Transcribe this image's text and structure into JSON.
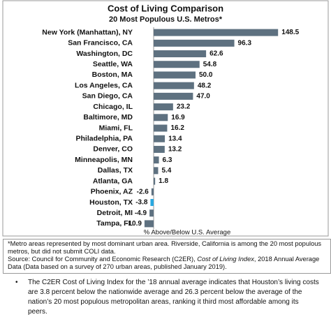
{
  "chart_data": {
    "type": "barh",
    "title": "Cost of Living Comparison",
    "subtitle": "20 Most Populous U.S. Metros*",
    "x_label": "% Above/Below U.S. Average",
    "categories": [
      "New York (Manhattan), NY",
      "San Francisco, CA",
      "Washington, DC",
      "Seattle, WA",
      "Boston, MA",
      "Los Angeles, CA",
      "San Diego, CA",
      "Chicago, IL",
      "Baltimore, MD",
      "Miami, FL",
      "Philadelphia, PA",
      "Denver, CO",
      "Minneapolis, MN",
      "Dallas, TX",
      "Atlanta, GA",
      "Phoenix, AZ",
      "Houston, TX",
      "Detroit, MI",
      "Tampa, FL"
    ],
    "values": [
      148.5,
      96.3,
      62.6,
      54.8,
      50.0,
      48.2,
      47.0,
      23.2,
      16.9,
      16.2,
      13.4,
      13.2,
      6.3,
      5.4,
      1.8,
      -2.6,
      -3.8,
      -4.9,
      -10.9
    ],
    "value_labels": [
      "148.5",
      "96.3",
      "62.6",
      "54.8",
      "50.0",
      "48.2",
      "47.0",
      "23.2",
      "16.9",
      "16.2",
      "13.4",
      "13.2",
      "6.3",
      "5.4",
      "1.8",
      "-2.6",
      "-3.8",
      "-4.9",
      "-10.9"
    ],
    "colors": [
      "#5e7180",
      "#5e7180",
      "#5e7180",
      "#5e7180",
      "#5e7180",
      "#5e7180",
      "#5e7180",
      "#5e7180",
      "#5e7180",
      "#5e7180",
      "#5e7180",
      "#5e7180",
      "#5e7180",
      "#5e7180",
      "#5e7180",
      "#5e7180",
      "#29a8e0",
      "#5e7180",
      "#5e7180"
    ],
    "xlim": [
      -20,
      165
    ]
  },
  "notes": [
    "*Metro areas represented by most dominant urban area. Riverside, California is among the 20 most populous metros, but did not submit COLI data.",
    [
      "Source: Council for Community and Economic Research (C2ER), ",
      "Cost of Living Index",
      ", 2018 Annual Average Data (Data based on a survey of 270 urban areas, published January 2019)."
    ]
  ],
  "bullet": "The C2ER Cost of Living Index for the ’18 annual average indicates that Houston’s living costs are 3.8 percent below the nationwide average and 26.3 percent below the average of the nation’s 20 most populous metropolitan areas, ranking it third most affordable among its peers."
}
